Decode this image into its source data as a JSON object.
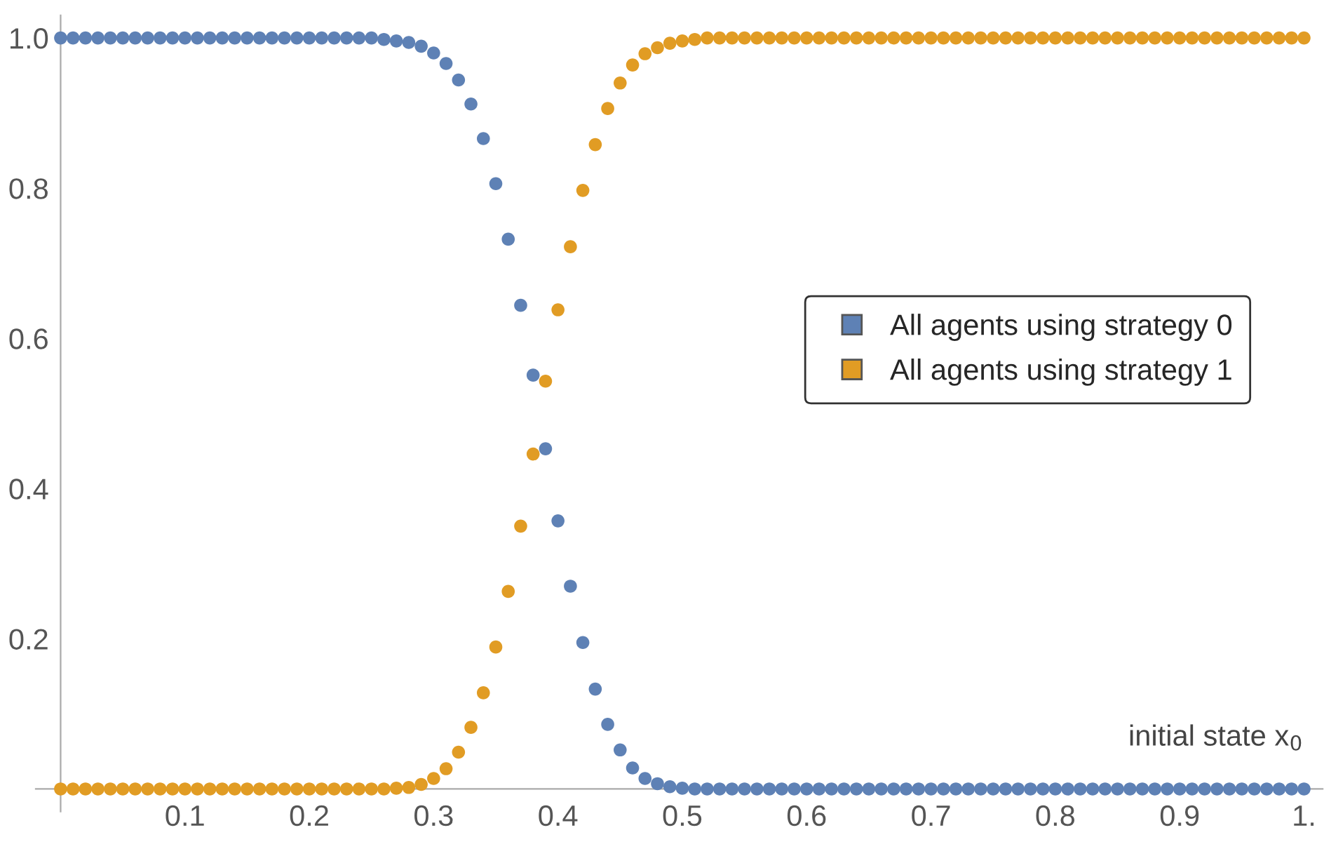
{
  "chart_data": {
    "type": "scatter",
    "xlabel": "initial state x$_{0}$",
    "x": [
      0,
      0.01,
      0.02,
      0.03,
      0.04,
      0.05,
      0.06,
      0.07,
      0.08,
      0.09,
      0.1,
      0.11,
      0.12,
      0.13,
      0.14,
      0.15,
      0.16,
      0.17,
      0.18,
      0.19,
      0.2,
      0.21,
      0.22,
      0.23,
      0.24,
      0.25,
      0.26,
      0.27,
      0.28,
      0.29,
      0.3,
      0.31,
      0.32,
      0.33,
      0.34,
      0.35,
      0.36,
      0.37,
      0.38,
      0.39,
      0.4,
      0.41,
      0.42,
      0.43,
      0.44,
      0.45,
      0.46,
      0.47,
      0.48,
      0.49,
      0.5,
      0.51,
      0.52,
      0.53,
      0.54,
      0.55,
      0.56,
      0.57,
      0.58,
      0.59,
      0.6,
      0.61,
      0.62,
      0.63,
      0.64,
      0.65,
      0.66,
      0.67,
      0.68,
      0.69,
      0.7,
      0.71,
      0.72,
      0.73,
      0.74,
      0.75,
      0.76,
      0.77,
      0.78,
      0.79,
      0.8,
      0.81,
      0.82,
      0.83,
      0.84,
      0.85,
      0.86,
      0.87,
      0.88,
      0.89,
      0.9,
      0.91,
      0.92,
      0.93,
      0.94,
      0.95,
      0.96,
      0.97,
      0.98,
      0.99,
      1
    ],
    "series": [
      {
        "name": "All agents using strategy 0",
        "color": "#5e81b5",
        "values": [
          1,
          1,
          1,
          1,
          1,
          1,
          1,
          1,
          1,
          1,
          1,
          1,
          1,
          1,
          1,
          1,
          1,
          1,
          1,
          1,
          1,
          1,
          1,
          1,
          1,
          1,
          0.998,
          0.996,
          0.994,
          0.989,
          0.98,
          0.966,
          0.944,
          0.912,
          0.866,
          0.806,
          0.732,
          0.644,
          0.551,
          0.453,
          0.357,
          0.27,
          0.195,
          0.133,
          0.086,
          0.052,
          0.028,
          0.014,
          0.007,
          0.003,
          0.001,
          0,
          0,
          0,
          0,
          0,
          0,
          0,
          0,
          0,
          0,
          0,
          0,
          0,
          0,
          0,
          0,
          0,
          0,
          0,
          0,
          0,
          0,
          0,
          0,
          0,
          0,
          0,
          0,
          0,
          0,
          0,
          0,
          0,
          0,
          0,
          0,
          0,
          0,
          0,
          0,
          0,
          0,
          0,
          0,
          0,
          0,
          0,
          0,
          0,
          0
        ]
      },
      {
        "name": "All agents using strategy 1",
        "color": "#e19c24",
        "values": [
          0,
          0,
          0,
          0,
          0,
          0,
          0,
          0,
          0,
          0,
          0,
          0,
          0,
          0,
          0,
          0,
          0,
          0,
          0,
          0,
          0,
          0,
          0,
          0,
          0,
          0,
          0,
          0.001,
          0.002,
          0.006,
          0.014,
          0.027,
          0.049,
          0.082,
          0.128,
          0.189,
          0.263,
          0.35,
          0.446,
          0.543,
          0.638,
          0.722,
          0.797,
          0.858,
          0.906,
          0.94,
          0.964,
          0.979,
          0.987,
          0.993,
          0.996,
          0.998,
          1,
          1,
          1,
          1,
          1,
          1,
          1,
          1,
          1,
          1,
          1,
          1,
          1,
          1,
          1,
          1,
          1,
          1,
          1,
          1,
          1,
          1,
          1,
          1,
          1,
          1,
          1,
          1,
          1,
          1,
          1,
          1,
          1,
          1,
          1,
          1,
          1,
          1,
          1,
          1,
          1,
          1,
          1,
          1,
          1,
          1,
          1,
          1,
          1
        ]
      }
    ],
    "xlim": [
      -0.02,
      1.015
    ],
    "ylim": [
      -0.03,
      1.03
    ],
    "xticks": [
      0.1,
      0.2,
      0.3,
      0.4,
      0.5,
      0.6,
      0.7,
      0.8,
      0.9,
      {
        "value": 1,
        "label": "1."
      }
    ],
    "yticks": [
      0.2,
      0.4,
      0.6,
      0.8,
      {
        "value": 1,
        "label": "1.0"
      }
    ],
    "marker": "circle",
    "grid": false,
    "legend": "right"
  }
}
